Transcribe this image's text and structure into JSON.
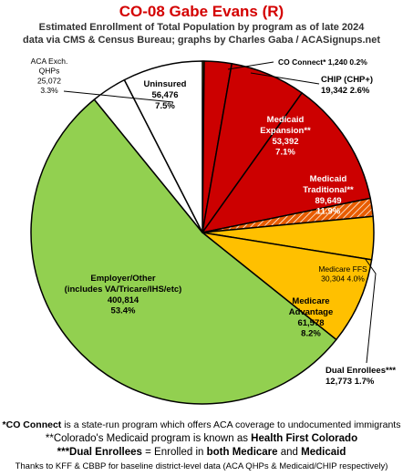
{
  "header": {
    "title": "CO-08 Gabe Evans (R)",
    "subtitle_line1": "Estimated Enrollment of Total Population by program as of late 2024",
    "subtitle_line2": "data via CMS & Census Bureau; graphs by Charles Gaba / ACASignups.net"
  },
  "chart_data": {
    "type": "pie",
    "title": "CO-08 Gabe Evans (R)",
    "start": "12 o'clock, clockwise",
    "slices": [
      {
        "key": "co_connect",
        "label": [
          "CO Connect* 1,240 0.2%"
        ],
        "value": 1240,
        "percent": 0.2,
        "color": "#ffff00"
      },
      {
        "key": "chip",
        "label": [
          "CHIP (CHP+)",
          "19,342 2.6%"
        ],
        "value": 19342,
        "percent": 2.6,
        "color": "#cc0000"
      },
      {
        "key": "medicaid_expansion",
        "label": [
          "Medicaid",
          "Expansion**",
          "53,392",
          "7.1%"
        ],
        "value": 53392,
        "percent": 7.1,
        "color": "#cc0000"
      },
      {
        "key": "medicaid_traditional",
        "label": [
          "Medicaid",
          "Traditional**",
          "89,649",
          "11.9%"
        ],
        "value": 89649,
        "percent": 11.9,
        "color": "#cc0000"
      },
      {
        "key": "dual_enrollees",
        "label": [
          "Dual Enrollees***",
          "12,773 1.7%"
        ],
        "value": 12773,
        "percent": 1.7,
        "color": "#e85c00",
        "pattern": "hatched"
      },
      {
        "key": "medicare_ffs",
        "label": [
          "Medicare FFS",
          "30,304 4.0%"
        ],
        "value": 30304,
        "percent": 4.0,
        "color": "#ffc000"
      },
      {
        "key": "medicare_advantage",
        "label": [
          "Medicare",
          "Advantage",
          "61,578",
          "8.2%"
        ],
        "value": 61578,
        "percent": 8.2,
        "color": "#ffc000"
      },
      {
        "key": "employer_other",
        "label": [
          "Employer/Other",
          "(includes VA/Tricare/IHS/etc)",
          "400,814",
          "53.4%"
        ],
        "value": 400814,
        "percent": 53.4,
        "color": "#92d050"
      },
      {
        "key": "aca_exch_qhps",
        "label": [
          "ACA Exch.",
          "QHPs",
          "25,072",
          "3.3%"
        ],
        "value": 25072,
        "percent": 3.3,
        "color": "#ffffff"
      },
      {
        "key": "uninsured",
        "label": [
          "Uninsured",
          "56,476",
          "7.5%"
        ],
        "value": 56476,
        "percent": 7.5,
        "color": "#ffffff"
      }
    ]
  },
  "footnotes": {
    "note1_bold": "*CO Connect",
    "note1_rest": " is a state-run program which offers ACA coverage to undocumented immigrants",
    "note2_start": "**Colorado's Medicaid program is known as ",
    "note2_bold": "Health First Colorado",
    "note3_bold1": "***Dual Enrollees",
    "note3_mid1": " = Enrolled in ",
    "note3_bold2": "both Medicare",
    "note3_mid2": " and ",
    "note3_bold3": "Medicaid",
    "note4": "Thanks to KFF & CBBP for baseline district-level data (ACA QHPs & Medicaid/CHIP respectively)"
  }
}
